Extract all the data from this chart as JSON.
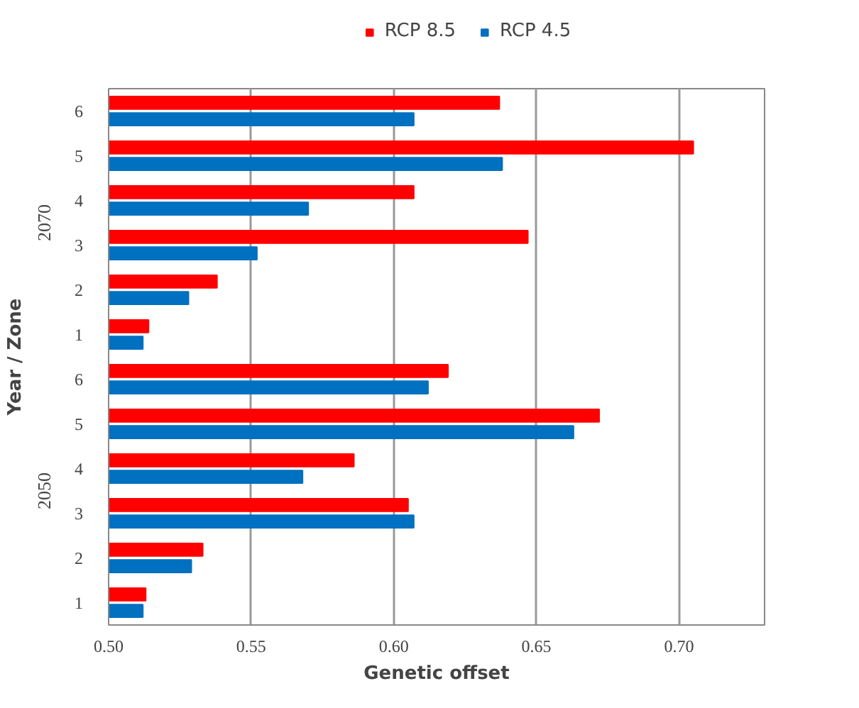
{
  "chart_data": {
    "type": "bar",
    "orientation": "horizontal",
    "xlabel": "Genetic offset",
    "ylabel": "Year / Zone",
    "categories": [
      "6",
      "5",
      "4",
      "3",
      "2",
      "1",
      "6",
      "5",
      "4",
      "3",
      "2",
      "1"
    ],
    "series": [
      {
        "name": "RCP 8.5",
        "color": "#ff0000",
        "values": [
          0.637,
          0.705,
          0.607,
          0.647,
          0.538,
          0.514,
          0.619,
          0.672,
          0.586,
          0.605,
          0.533,
          0.513
        ]
      },
      {
        "name": "RCP 4.5",
        "color": "#0070c0",
        "values": [
          0.607,
          0.638,
          0.57,
          0.552,
          0.528,
          0.512,
          0.612,
          0.663,
          0.568,
          0.607,
          0.529,
          0.512
        ]
      }
    ],
    "annotations": [
      "2070",
      "2050"
    ],
    "xlim": [
      0.5,
      0.73
    ],
    "xticks": [
      {
        "value": 0.5,
        "label": "0.50"
      },
      {
        "value": 0.55,
        "label": "0.55"
      },
      {
        "value": 0.6,
        "label": "0.60"
      },
      {
        "value": 0.65,
        "label": "0.65"
      },
      {
        "value": 0.7,
        "label": "0.70"
      }
    ],
    "grid": "x",
    "legend": "top"
  }
}
